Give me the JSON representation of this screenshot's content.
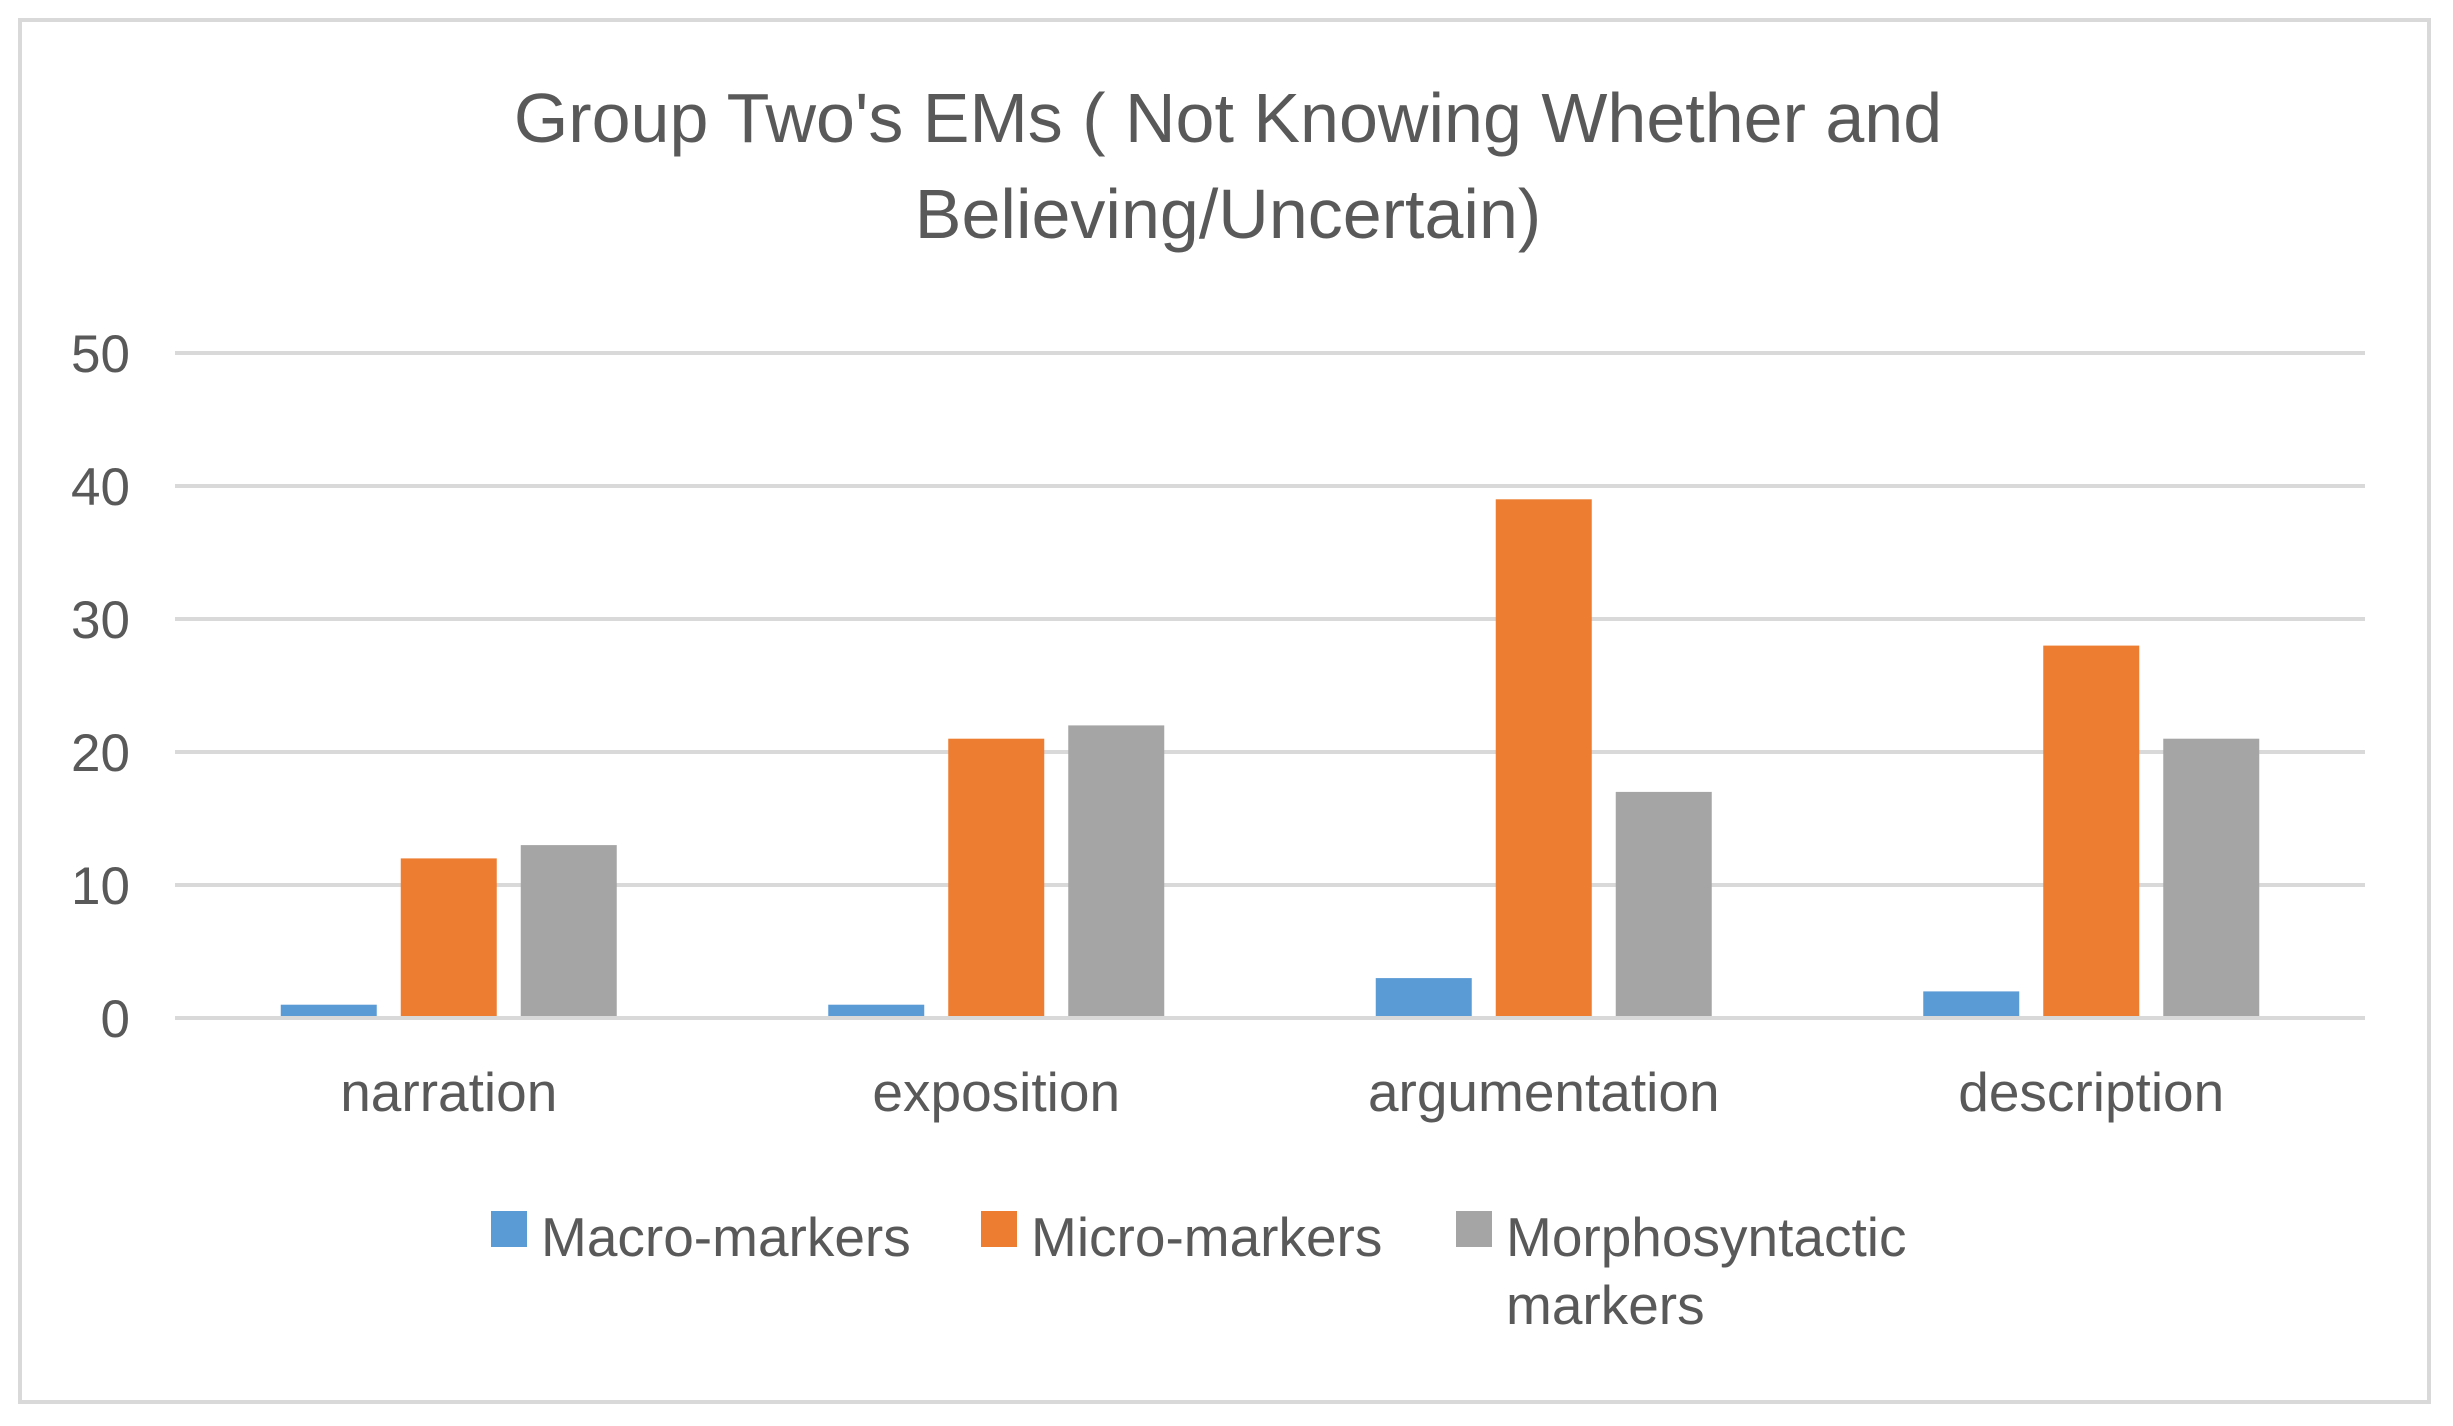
{
  "chart_data": {
    "type": "bar",
    "title_lines": [
      "Group Two's EMs ( Not Knowing Whether and",
      "Believing/Uncertain)"
    ],
    "categories": [
      "narration",
      "exposition",
      "argumentation",
      "description"
    ],
    "series": [
      {
        "name": "Macro-markers",
        "color": "#5b9bd5",
        "values": [
          1,
          1,
          3,
          2
        ]
      },
      {
        "name": "Micro-markers",
        "color": "#ed7d31",
        "values": [
          12,
          21,
          39,
          28
        ]
      },
      {
        "name": "Morphosyntactic markers",
        "color": "#a5a5a5",
        "values": [
          13,
          22,
          17,
          21
        ]
      }
    ],
    "legend_label_lines": [
      [
        "Macro-markers"
      ],
      [
        "Micro-markers"
      ],
      [
        "Morphosyntactic",
        "markers"
      ]
    ],
    "yticks": [
      "0",
      "10",
      "20",
      "30",
      "40",
      "50"
    ],
    "ylim": [
      0,
      50
    ],
    "xlabel": "",
    "ylabel": "",
    "grid": true,
    "legend_position": "bottom",
    "gridline_color": "#d9d9d9"
  }
}
